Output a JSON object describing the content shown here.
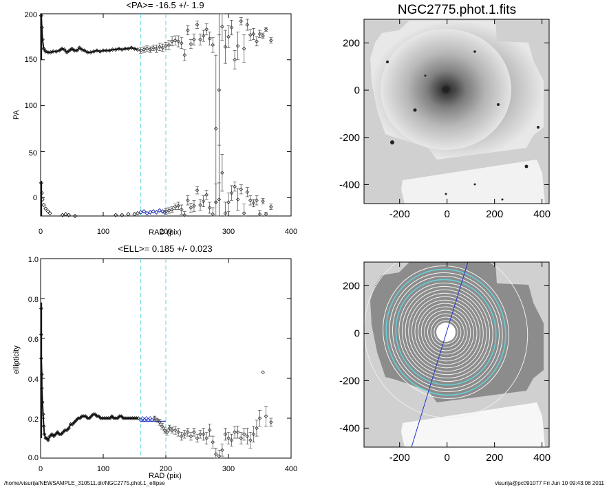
{
  "colors": {
    "axis": "#000000",
    "marker": "#333333",
    "cyan": "#5fd8e0",
    "blue": "#2233cc",
    "image_bg": "#d0d0d0"
  },
  "footer": {
    "left": "/home/visurija/NEWSAMPLE_310511.dir/NGC2775.phot.1_ellipse",
    "right": "visurija@pc091077  Fri Jun 10 09:43:08 2011"
  },
  "chart_data": [
    {
      "type": "scatter",
      "id": "pa",
      "title": "<PA>= -16.5 +/-   1.9",
      "xlabel": "RAD (pix)",
      "ylabel": "PA",
      "xlim": [
        0,
        400
      ],
      "ylim": [
        -20,
        200
      ],
      "xticks": [
        "0",
        "100",
        "200",
        "300",
        "400"
      ],
      "yticks": [
        "0",
        "50",
        "100",
        "150",
        "200"
      ],
      "vlines": [
        160,
        200
      ],
      "dense_upper": [
        [
          1,
          198
        ],
        [
          2,
          185
        ],
        [
          3,
          172
        ],
        [
          5,
          162
        ],
        [
          8,
          159
        ],
        [
          12,
          158
        ],
        [
          16,
          158
        ],
        [
          20,
          159
        ],
        [
          25,
          159
        ],
        [
          30,
          160
        ],
        [
          34,
          162
        ],
        [
          38,
          161
        ],
        [
          42,
          158
        ],
        [
          46,
          160
        ],
        [
          50,
          162
        ],
        [
          54,
          160
        ],
        [
          58,
          160
        ],
        [
          62,
          163
        ],
        [
          66,
          161
        ],
        [
          70,
          160
        ],
        [
          75,
          158
        ],
        [
          80,
          158
        ],
        [
          85,
          159
        ],
        [
          90,
          160
        ],
        [
          95,
          159
        ],
        [
          100,
          160
        ],
        [
          105,
          160
        ],
        [
          110,
          160
        ],
        [
          115,
          161
        ],
        [
          120,
          161
        ],
        [
          125,
          162
        ],
        [
          130,
          161
        ],
        [
          135,
          162
        ],
        [
          140,
          162
        ],
        [
          145,
          163
        ],
        [
          150,
          162
        ],
        [
          155,
          161
        ]
      ],
      "dense_lower": [
        [
          1,
          16
        ],
        [
          2,
          5
        ],
        [
          3,
          -2
        ],
        [
          5,
          -8
        ],
        [
          8,
          -12
        ],
        [
          12,
          -15
        ],
        [
          15,
          -17
        ],
        [
          35,
          -19
        ],
        [
          40,
          -18
        ],
        [
          45,
          -19
        ],
        [
          55,
          -20
        ],
        [
          120,
          -19
        ],
        [
          130,
          -19
        ],
        [
          140,
          -18
        ],
        [
          150,
          -18
        ],
        [
          155,
          -17
        ],
        [
          160,
          -16
        ],
        [
          165,
          -15
        ],
        [
          170,
          -17
        ],
        [
          175,
          -16
        ],
        [
          180,
          -15
        ],
        [
          185,
          -16
        ],
        [
          190,
          -14
        ],
        [
          195,
          -15
        ]
      ],
      "blue_points": [
        [
          160,
          -16
        ],
        [
          165,
          -15
        ],
        [
          170,
          -17
        ],
        [
          175,
          -16
        ],
        [
          180,
          -15
        ],
        [
          185,
          -16
        ],
        [
          190,
          -14
        ],
        [
          195,
          -15
        ],
        [
          198,
          -16
        ]
      ],
      "err_upper": [
        [
          160,
          160,
          3
        ],
        [
          165,
          161,
          3
        ],
        [
          170,
          162,
          3
        ],
        [
          175,
          161,
          3
        ],
        [
          180,
          163,
          3
        ],
        [
          185,
          162,
          4
        ],
        [
          190,
          164,
          4
        ],
        [
          195,
          163,
          4
        ],
        [
          200,
          165,
          4
        ],
        [
          205,
          166,
          5
        ],
        [
          210,
          170,
          5
        ],
        [
          215,
          171,
          5
        ],
        [
          220,
          170,
          6
        ],
        [
          225,
          168,
          6
        ],
        [
          230,
          155,
          6
        ],
        [
          235,
          182,
          5
        ],
        [
          240,
          167,
          5
        ],
        [
          245,
          172,
          6
        ],
        [
          250,
          188,
          4
        ],
        [
          255,
          172,
          6
        ],
        [
          260,
          176,
          6
        ],
        [
          265,
          183,
          6
        ],
        [
          270,
          173,
          7
        ],
        [
          275,
          166,
          8
        ],
        [
          280,
          75,
          80
        ],
        [
          285,
          117,
          60
        ],
        [
          290,
          186,
          15
        ],
        [
          295,
          164,
          18
        ],
        [
          300,
          175,
          12
        ],
        [
          305,
          185,
          8
        ],
        [
          310,
          150,
          10
        ],
        [
          315,
          165,
          15
        ],
        [
          320,
          192,
          4
        ],
        [
          325,
          162,
          15
        ],
        [
          330,
          188,
          6
        ],
        [
          335,
          177,
          6
        ],
        [
          340,
          178,
          6
        ],
        [
          345,
          170,
          5
        ],
        [
          350,
          178,
          4
        ],
        [
          355,
          176,
          3
        ],
        [
          360,
          183,
          2
        ],
        [
          368,
          171,
          3
        ]
      ],
      "err_lower": [
        [
          200,
          -15,
          3
        ],
        [
          205,
          -14,
          3
        ],
        [
          210,
          -13,
          3
        ],
        [
          215,
          -10,
          3
        ],
        [
          220,
          -9,
          4
        ],
        [
          225,
          -13,
          5
        ],
        [
          230,
          -19,
          4
        ],
        [
          235,
          -3,
          5
        ],
        [
          240,
          -11,
          5
        ],
        [
          245,
          -9,
          6
        ],
        [
          250,
          8,
          4
        ],
        [
          255,
          -8,
          6
        ],
        [
          260,
          -4,
          6
        ],
        [
          265,
          3,
          5
        ],
        [
          270,
          -11,
          6
        ],
        [
          275,
          -18,
          7
        ],
        [
          280,
          -5,
          20
        ],
        [
          285,
          -2,
          18
        ],
        [
          290,
          27,
          20
        ],
        [
          295,
          -17,
          12
        ],
        [
          300,
          -5,
          10
        ],
        [
          305,
          5,
          8
        ],
        [
          310,
          12,
          5
        ],
        [
          315,
          -2,
          12
        ],
        [
          320,
          9,
          5
        ],
        [
          325,
          -17,
          10
        ],
        [
          330,
          6,
          5
        ],
        [
          335,
          -3,
          5
        ],
        [
          340,
          -6,
          4
        ],
        [
          345,
          -3,
          5
        ],
        [
          350,
          -18,
          4
        ],
        [
          355,
          -4,
          3
        ],
        [
          360,
          -18,
          2
        ],
        [
          368,
          -10,
          3
        ]
      ]
    },
    {
      "type": "scatter",
      "id": "ell",
      "title": "<ELL>= 0.185 +/-  0.023",
      "xlabel": "RAD (pix)",
      "ylabel": "ellipticity",
      "xlim": [
        0,
        400
      ],
      "ylim": [
        0,
        1
      ],
      "xticks": [
        "0",
        "100",
        "200",
        "300",
        "400"
      ],
      "yticks": [
        "0.0",
        "0.2",
        "0.4",
        "0.6",
        "0.8",
        "1.0"
      ],
      "vlines": [
        160,
        200
      ],
      "mean_segment": [
        160,
        200,
        0.185
      ],
      "dense": [
        [
          1,
          0.75
        ],
        [
          1,
          0.62
        ],
        [
          1,
          0.5
        ],
        [
          2,
          0.42
        ],
        [
          2,
          0.35
        ],
        [
          3,
          0.28
        ],
        [
          4,
          0.22
        ],
        [
          5,
          0.16
        ],
        [
          6,
          0.12
        ],
        [
          8,
          0.1
        ],
        [
          10,
          0.1
        ],
        [
          12,
          0.09
        ],
        [
          15,
          0.11
        ],
        [
          18,
          0.12
        ],
        [
          21,
          0.11
        ],
        [
          24,
          0.12
        ],
        [
          27,
          0.13
        ],
        [
          30,
          0.12
        ],
        [
          33,
          0.12
        ],
        [
          36,
          0.13
        ],
        [
          39,
          0.14
        ],
        [
          42,
          0.14
        ],
        [
          45,
          0.15
        ],
        [
          48,
          0.17
        ],
        [
          51,
          0.17
        ],
        [
          54,
          0.18
        ],
        [
          57,
          0.19
        ],
        [
          60,
          0.2
        ],
        [
          63,
          0.2
        ],
        [
          66,
          0.21
        ],
        [
          69,
          0.21
        ],
        [
          72,
          0.21
        ],
        [
          75,
          0.2
        ],
        [
          78,
          0.2
        ],
        [
          81,
          0.21
        ],
        [
          84,
          0.22
        ],
        [
          87,
          0.22
        ],
        [
          90,
          0.21
        ],
        [
          93,
          0.21
        ],
        [
          96,
          0.2
        ],
        [
          99,
          0.2
        ],
        [
          102,
          0.2
        ],
        [
          105,
          0.2
        ],
        [
          108,
          0.2
        ],
        [
          111,
          0.2
        ],
        [
          114,
          0.21
        ],
        [
          117,
          0.2
        ],
        [
          120,
          0.2
        ],
        [
          123,
          0.2
        ],
        [
          126,
          0.21
        ],
        [
          129,
          0.21
        ],
        [
          132,
          0.2
        ],
        [
          135,
          0.2
        ],
        [
          138,
          0.2
        ],
        [
          141,
          0.2
        ],
        [
          144,
          0.2
        ],
        [
          147,
          0.2
        ],
        [
          150,
          0.2
        ],
        [
          153,
          0.2
        ],
        [
          156,
          0.2
        ]
      ],
      "blue_points": [
        [
          160,
          0.19
        ],
        [
          163,
          0.2
        ],
        [
          166,
          0.19
        ],
        [
          169,
          0.2
        ],
        [
          172,
          0.19
        ],
        [
          175,
          0.2
        ],
        [
          178,
          0.19
        ]
      ],
      "err": [
        [
          182,
          0.2,
          0.01
        ],
        [
          186,
          0.19,
          0.01
        ],
        [
          190,
          0.18,
          0.015
        ],
        [
          194,
          0.16,
          0.015
        ],
        [
          198,
          0.14,
          0.015
        ],
        [
          202,
          0.13,
          0.015
        ],
        [
          206,
          0.15,
          0.015
        ],
        [
          210,
          0.14,
          0.015
        ],
        [
          215,
          0.14,
          0.02
        ],
        [
          220,
          0.13,
          0.02
        ],
        [
          225,
          0.11,
          0.02
        ],
        [
          230,
          0.12,
          0.02
        ],
        [
          235,
          0.13,
          0.02
        ],
        [
          240,
          0.11,
          0.02
        ],
        [
          245,
          0.13,
          0.02
        ],
        [
          250,
          0.1,
          0.02
        ],
        [
          255,
          0.12,
          0.02
        ],
        [
          260,
          0.12,
          0.03
        ],
        [
          265,
          0.1,
          0.03
        ],
        [
          270,
          0.14,
          0.03
        ],
        [
          275,
          0.08,
          0.03
        ],
        [
          280,
          0.02,
          0.03
        ],
        [
          285,
          0.01,
          0.03
        ],
        [
          290,
          0.04,
          0.03
        ],
        [
          295,
          0.12,
          0.03
        ],
        [
          300,
          0.1,
          0.03
        ],
        [
          305,
          0.09,
          0.03
        ],
        [
          310,
          0.13,
          0.03
        ],
        [
          315,
          0.13,
          0.03
        ],
        [
          320,
          0.1,
          0.03
        ],
        [
          325,
          0.12,
          0.03
        ],
        [
          330,
          0.11,
          0.04
        ],
        [
          335,
          0.09,
          0.04
        ],
        [
          340,
          0.12,
          0.04
        ],
        [
          345,
          0.15,
          0.04
        ],
        [
          350,
          0.2,
          0.04
        ],
        [
          355,
          0.43,
          0.0
        ],
        [
          360,
          0.21,
          0.05
        ],
        [
          368,
          0.18,
          0.02
        ]
      ]
    },
    {
      "type": "image",
      "id": "img_top",
      "title": "NGC2775.phot.1.fits",
      "xlim": [
        -350,
        430
      ],
      "ylim": [
        -480,
        300
      ],
      "xticks": [
        -200,
        0,
        200,
        400
      ],
      "yticks": [
        200,
        0,
        -200,
        -400
      ],
      "xtick_labels": [
        "-200",
        "0",
        "200",
        "400"
      ],
      "ytick_labels": [
        "200",
        "0",
        "-200",
        "-400"
      ]
    },
    {
      "type": "image",
      "id": "img_bot",
      "xlim": [
        -350,
        430
      ],
      "ylim": [
        -480,
        300
      ],
      "xticks": [
        -200,
        0,
        200,
        400
      ],
      "yticks": [
        200,
        0,
        -200,
        -400
      ],
      "xtick_labels": [
        "-200",
        "0",
        "200",
        "400"
      ],
      "ytick_labels": [
        "200",
        "0",
        "-200",
        "-400"
      ]
    }
  ]
}
